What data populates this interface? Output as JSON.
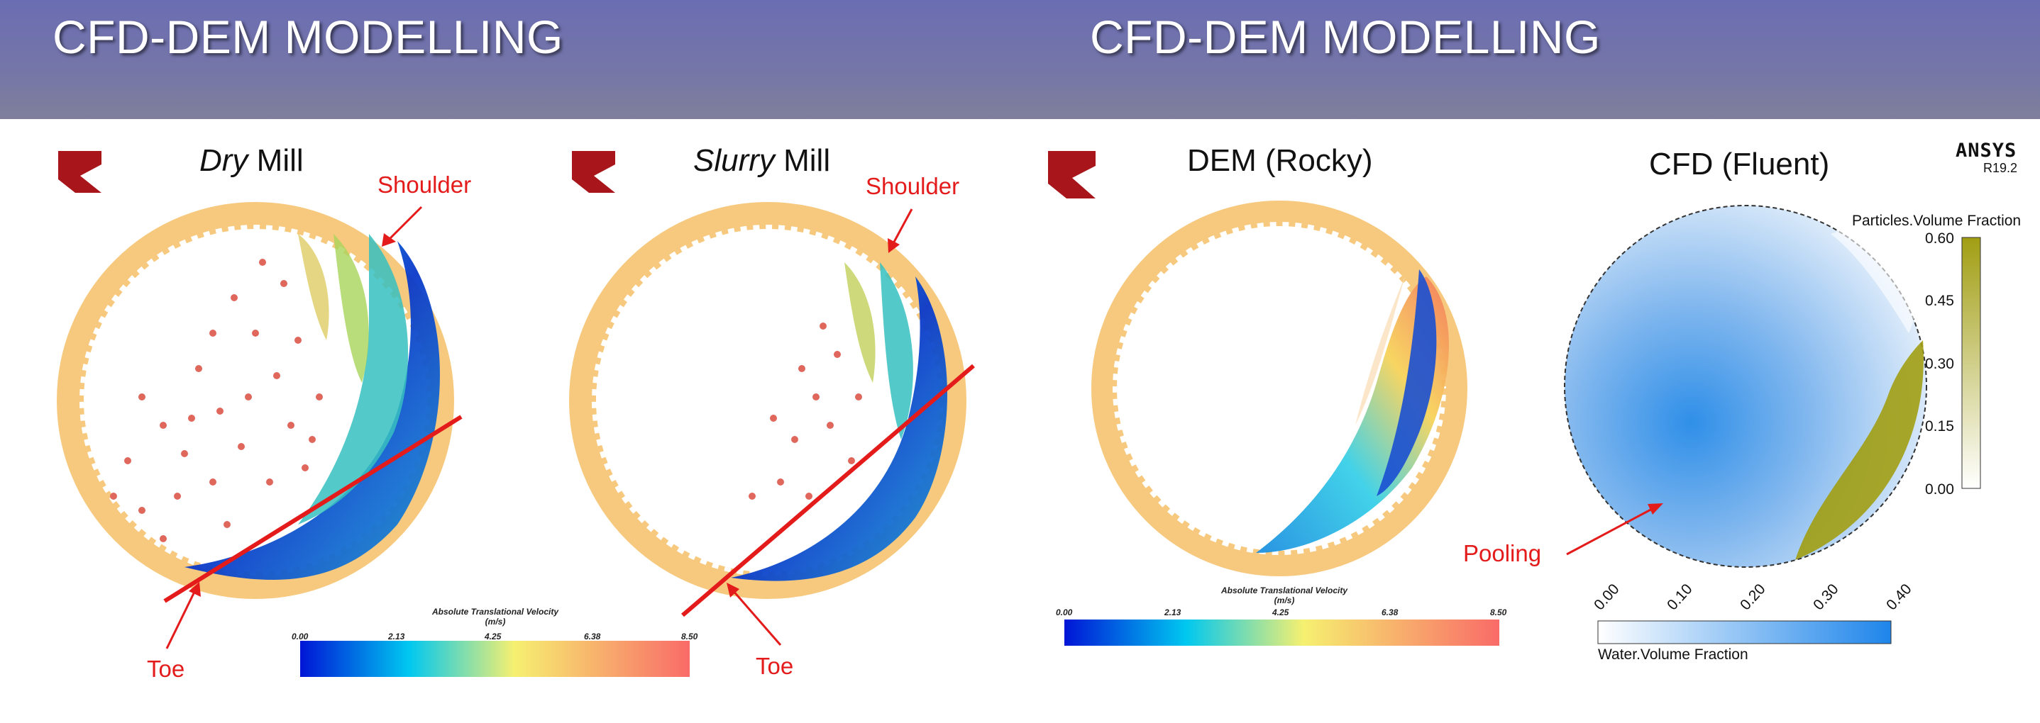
{
  "left_slide": {
    "title": "CFD-DEM MODELLING",
    "panel_dry": {
      "title_italic": "Dry",
      "title_rest": " Mill",
      "shoulder": "Shoulder",
      "toe": "Toe"
    },
    "panel_slurry": {
      "title_italic": "Slurry",
      "title_rest": " Mill",
      "shoulder": "Shoulder",
      "toe": "Toe"
    },
    "colorbar": {
      "title_line1": "Absolute Translational Velocity",
      "title_line2": "(m/s)",
      "ticks": [
        "0.00",
        "2.13",
        "4.25",
        "6.38",
        "8.50"
      ]
    }
  },
  "right_slide": {
    "title": "CFD-DEM MODELLING",
    "dem_title": "DEM (Rocky)",
    "cfd_title": "CFD (Fluent)",
    "ansys_name": "ANSYS",
    "ansys_version": "R19.2",
    "pooling": "Pooling",
    "dem_colorbar": {
      "title_line1": "Absolute Translational Velocity",
      "title_line2": "(m/s)",
      "ticks": [
        "0.00",
        "2.13",
        "4.25",
        "6.38",
        "8.50"
      ]
    },
    "particles_legend": {
      "title": "Particles.Volume Fraction",
      "ticks": [
        "0.60",
        "0.45",
        "0.30",
        "0.15",
        "0.00"
      ]
    },
    "water_legend": {
      "title": "Water.Volume Fraction",
      "ticks": [
        "0.00",
        "0.10",
        "0.20",
        "0.30",
        "0.40"
      ]
    }
  },
  "colors": {
    "banner": "#6b6db3",
    "shell": "#f7c97e",
    "annotation_red": "#e41b1b",
    "logo_red": "#a8151b",
    "velocity_scale": [
      "#0015d6",
      "#00c8f0",
      "#f6f070",
      "#f96b68"
    ],
    "particles_scale": [
      "#ffffff",
      "#a19e13"
    ],
    "water_scale": [
      "#ffffff",
      "#1e85ea"
    ]
  }
}
